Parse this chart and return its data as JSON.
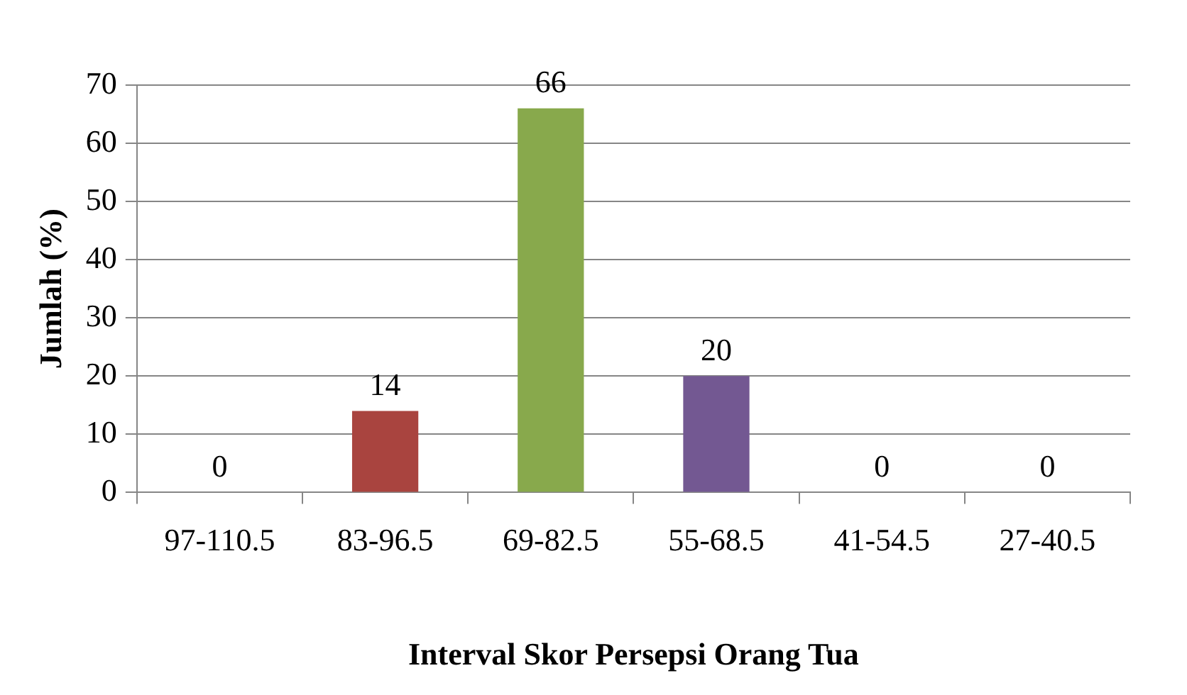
{
  "chart_data": {
    "type": "bar",
    "xlabel": "Interval Skor Persepsi Orang Tua",
    "ylabel": "Jumlah (%)",
    "categories": [
      "97-110.5",
      "83-96.5",
      "69-82.5",
      "55-68.5",
      "41-54.5",
      "27-40.5"
    ],
    "values": [
      0,
      14,
      66,
      20,
      0,
      0
    ],
    "colors": [
      "#4f81bd",
      "#a9443f",
      "#88a94c",
      "#735892",
      "#4bacc6",
      "#f79646"
    ],
    "ylim": [
      0,
      70
    ],
    "yticks": [
      0,
      10,
      20,
      30,
      40,
      50,
      60,
      70
    ],
    "grid": "y",
    "data_labels": true,
    "legend": false
  }
}
